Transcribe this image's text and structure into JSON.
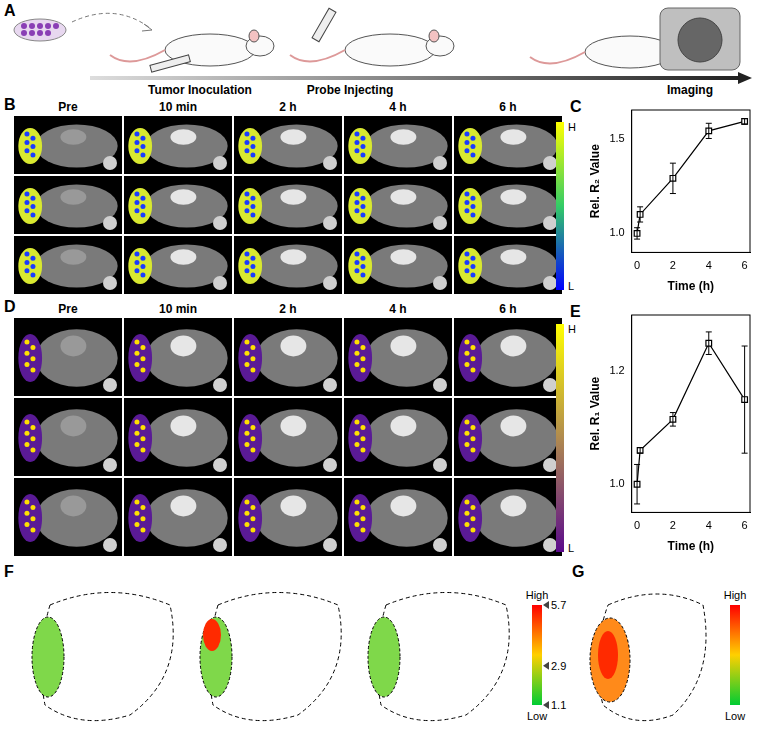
{
  "panels": {
    "A": {
      "letter": "A",
      "steps": [
        "Tumor Inoculation",
        "Probe Injecting",
        "Imaging"
      ]
    },
    "B": {
      "letter": "B",
      "columns": [
        "Pre",
        "10 min",
        "2 h",
        "4 h",
        "6 h"
      ],
      "rows": 3,
      "colorbar": {
        "high": "H",
        "low": "L"
      }
    },
    "C": {
      "letter": "C"
    },
    "D": {
      "letter": "D",
      "columns": [
        "Pre",
        "10 min",
        "2 h",
        "4 h",
        "6 h"
      ],
      "rows": 3,
      "colorbar": {
        "high": "H",
        "low": "L"
      }
    },
    "E": {
      "letter": "E"
    },
    "F": {
      "letter": "F",
      "colorbar": {
        "ticks": [
          5.7,
          2.9,
          1.1
        ],
        "high": "High",
        "low": "Low"
      }
    },
    "G": {
      "letter": "G",
      "colorbar": {
        "high": "High",
        "low": "Low"
      }
    }
  },
  "chart_data": [
    {
      "type": "line",
      "panel": "C",
      "x_label": "Time (h)",
      "y_label": "Rel. R₂ Value",
      "x": [
        0,
        0.17,
        2,
        4,
        6
      ],
      "values": [
        1.0,
        1.1,
        1.29,
        1.54,
        1.59
      ],
      "errors": [
        0.03,
        0.04,
        0.08,
        0.04,
        0.015
      ],
      "color": "#000000",
      "marker": "open_square",
      "xlim": [
        -0.3,
        6.3
      ],
      "xticks": [
        0,
        2,
        4,
        6
      ],
      "ylim": [
        0.9,
        1.65
      ],
      "yticks": [
        {
          "value": 1.0,
          "label": "1.0"
        },
        {
          "value": 1.5,
          "label": "1.5"
        }
      ],
      "grid": false
    },
    {
      "type": "line",
      "panel": "E",
      "x_label": "Time (h)",
      "y_label": "Rel. R₁ Value",
      "x": [
        0,
        0.17,
        2,
        4,
        6
      ],
      "values": [
        1.0,
        1.06,
        1.115,
        1.25,
        1.15
      ],
      "errors": [
        0.035,
        0.005,
        0.012,
        0.02,
        0.095
      ],
      "color": "#000000",
      "marker": "open_square",
      "xlim": [
        -0.3,
        6.3
      ],
      "xticks": [
        0,
        2,
        4,
        6
      ],
      "ylim": [
        0.95,
        1.3
      ],
      "yticks": [
        {
          "value": 1.0,
          "label": "1.0"
        },
        {
          "value": 1.2,
          "label": "1.2"
        }
      ],
      "grid": false
    }
  ]
}
